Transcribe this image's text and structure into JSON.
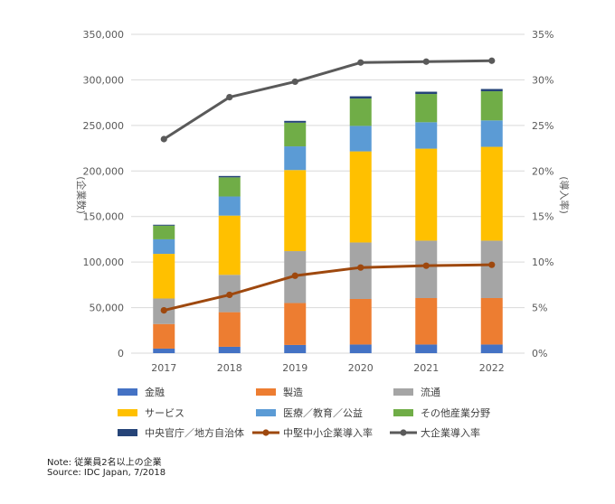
{
  "chart_data": {
    "type": "bar",
    "categories": [
      "2017",
      "2018",
      "2019",
      "2020",
      "2021",
      "2022"
    ],
    "series": [
      {
        "name": "金融",
        "color": "#4472C4",
        "values": [
          5000,
          7000,
          9000,
          9500,
          9500,
          9500
        ]
      },
      {
        "name": "製造",
        "color": "#ED7D31",
        "values": [
          27000,
          38000,
          46000,
          50000,
          51000,
          51000
        ]
      },
      {
        "name": "流通",
        "color": "#A5A5A5",
        "values": [
          28000,
          41000,
          57000,
          62000,
          63000,
          63000
        ]
      },
      {
        "name": "サービス",
        "color": "#FFC000",
        "values": [
          49000,
          65000,
          89000,
          100000,
          101000,
          103000
        ]
      },
      {
        "name": "医療／教育／公益",
        "color": "#5B9BD5",
        "values": [
          16000,
          21000,
          26000,
          28000,
          29000,
          29000
        ]
      },
      {
        "name": "その他産業分野",
        "color": "#70AD47",
        "values": [
          15000,
          21000,
          26000,
          30000,
          31000,
          32000
        ]
      },
      {
        "name": "中央官庁／地方自治体",
        "color": "#264478",
        "values": [
          1000,
          1500,
          2000,
          2500,
          2500,
          2500
        ]
      }
    ],
    "lines": [
      {
        "name": "中堅中小企業導入率",
        "color": "#9E480E",
        "values": [
          4.7,
          6.4,
          8.5,
          9.4,
          9.6,
          9.7
        ]
      },
      {
        "name": "大企業導入率",
        "color": "#5A5A5A",
        "values": [
          23.5,
          28.1,
          29.8,
          31.9,
          32.0,
          32.1
        ]
      }
    ],
    "ylabel": "(企業数)",
    "y2label": "(導入率)",
    "ylim": [
      0,
      350000
    ],
    "y_ticks": [
      "0",
      "50,000",
      "100,000",
      "150,000",
      "200,000",
      "250,000",
      "300,000",
      "350,000"
    ],
    "y2lim": [
      0,
      35
    ],
    "y2_ticks": [
      "0%",
      "5%",
      "10%",
      "15%",
      "20%",
      "25%",
      "30%",
      "35%"
    ],
    "grid": true,
    "legend_position": "bottom"
  },
  "notes": {
    "note": "Note: 従業員2名以上の企業",
    "source": "Source: IDC Japan, 7/2018"
  }
}
